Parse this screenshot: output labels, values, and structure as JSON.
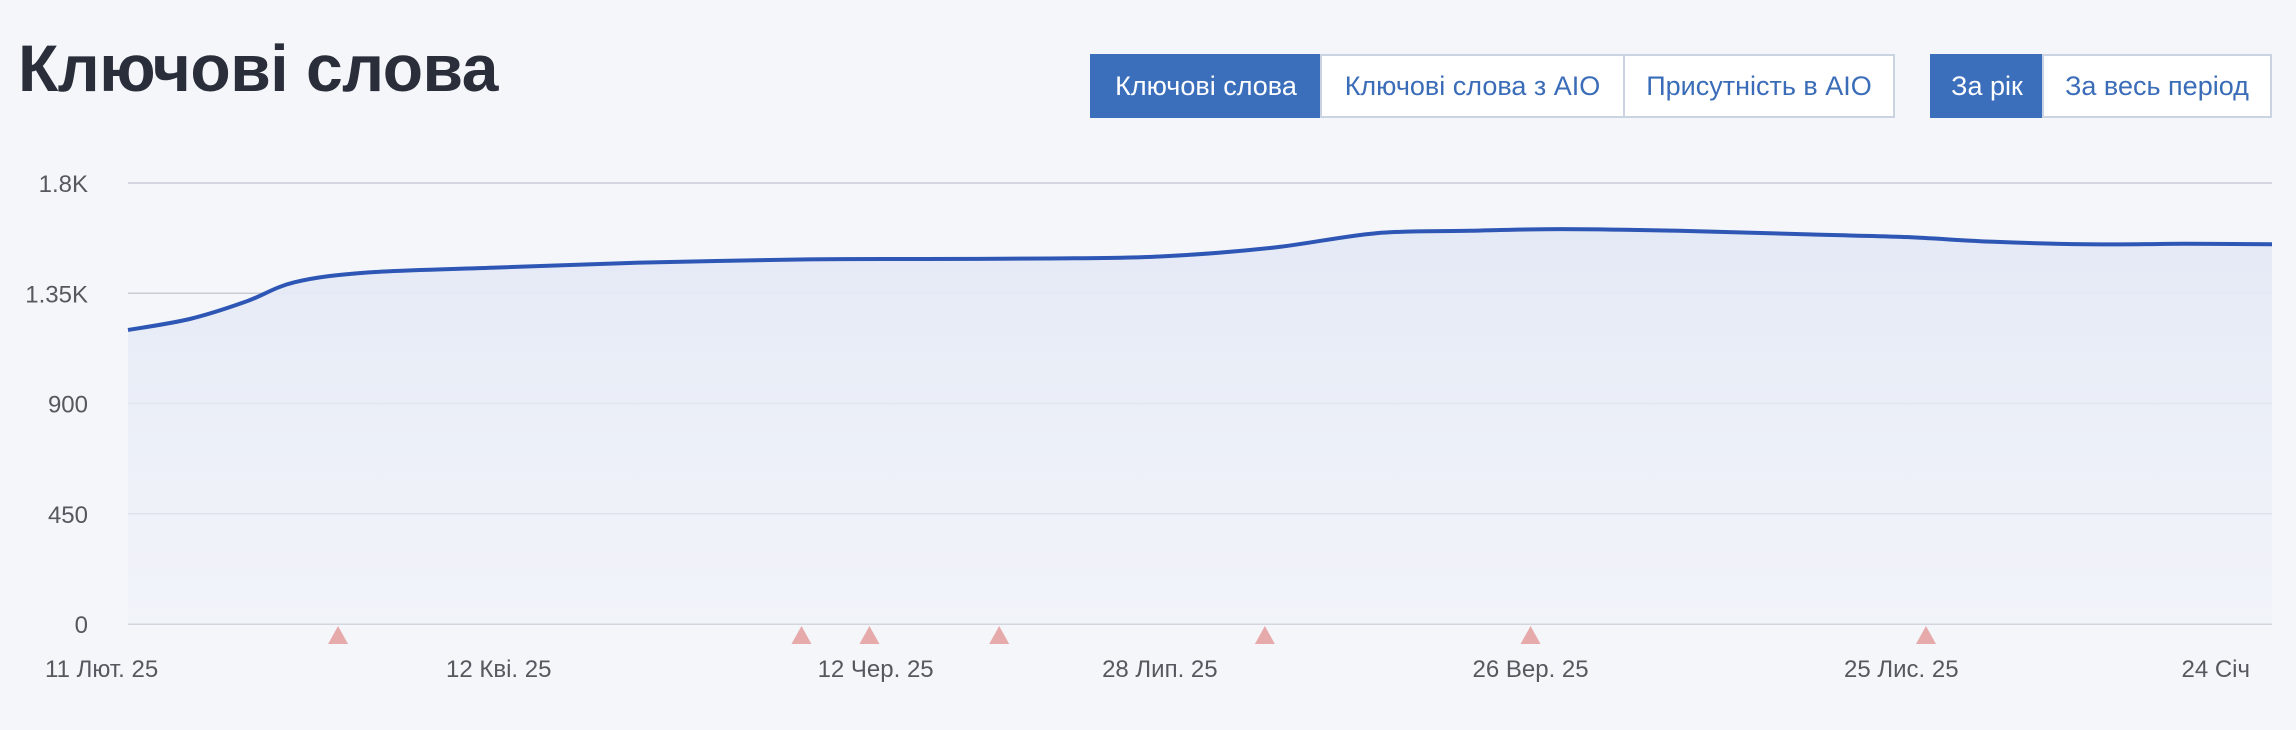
{
  "header": {
    "title": "Ключові слова"
  },
  "metric_tabs": [
    {
      "label": "Ключові слова",
      "active": true
    },
    {
      "label": "Ключові слова з AIO",
      "active": false
    },
    {
      "label": "Присутність в AIO",
      "active": false
    }
  ],
  "period_tabs": [
    {
      "label": "За рік",
      "active": true
    },
    {
      "label": "За весь період",
      "active": false
    }
  ],
  "colors": {
    "line": "#2e56b5",
    "area": "#e4e9f6",
    "grid": "#c8ccd4",
    "marker": "#e6aaaa",
    "active_button": "#3b6fbc"
  },
  "chart_data": {
    "type": "area",
    "title": "",
    "xlabel": "",
    "ylabel": "",
    "ylim": [
      0,
      1800
    ],
    "yticks": [
      0,
      450,
      900,
      1350,
      1800
    ],
    "ytick_labels": [
      "0",
      "450",
      "900",
      "1.35K",
      "1.8K"
    ],
    "xlim": [
      "2025-02-11",
      "2026-01-24"
    ],
    "xtick_dates": [
      "2025-02-11",
      "2025-04-12",
      "2025-06-12",
      "2025-07-28",
      "2025-09-26",
      "2025-11-25",
      "2026-01-24"
    ],
    "xtick_labels": [
      "11 Лют. 25",
      "12 Кві. 25",
      "12 Чер. 25",
      "28 Лип. 25",
      "26 Вер. 25",
      "25 Лис. 25",
      "24 Січ"
    ],
    "grid": true,
    "legend": "none",
    "series": [
      {
        "x": [
          "2025-02-11",
          "2025-02-21",
          "2025-03-02",
          "2025-03-10",
          "2025-03-22",
          "2025-04-12",
          "2025-05-05",
          "2025-06-01",
          "2025-06-20",
          "2025-07-10",
          "2025-07-28",
          "2025-08-15",
          "2025-09-01",
          "2025-09-16",
          "2025-10-01",
          "2025-10-20",
          "2025-11-10",
          "2025-11-25",
          "2025-12-10",
          "2025-12-25",
          "2026-01-10",
          "2026-01-24"
        ],
        "values": [
          1200,
          1245,
          1315,
          1395,
          1435,
          1455,
          1475,
          1488,
          1490,
          1492,
          1500,
          1535,
          1595,
          1605,
          1612,
          1605,
          1590,
          1580,
          1560,
          1550,
          1552,
          1550
        ]
      }
    ],
    "markers": [
      "2025-03-17",
      "2025-05-31",
      "2025-06-11",
      "2025-07-02",
      "2025-08-14",
      "2025-09-26",
      "2025-11-29"
    ]
  }
}
